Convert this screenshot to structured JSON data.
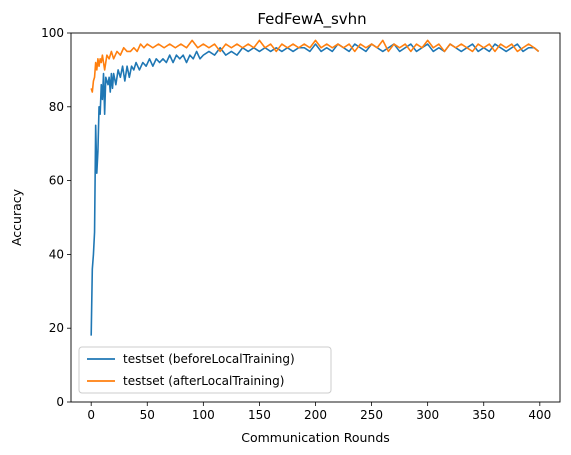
{
  "chart_data": {
    "type": "line",
    "title": "FedFewA_svhn",
    "xlabel": "Communication Rounds",
    "ylabel": "Accuracy",
    "xlim": [
      -18,
      418
    ],
    "ylim": [
      0,
      100
    ],
    "xticks": [
      0,
      50,
      100,
      150,
      200,
      250,
      300,
      350,
      400
    ],
    "yticks": [
      0,
      20,
      40,
      60,
      80,
      100
    ],
    "grid": false,
    "legend_position": "lower-left",
    "series": [
      {
        "name": "testset (beforeLocalTraining)",
        "color": "#1f77b4",
        "x": [
          0,
          1,
          2,
          3,
          4,
          5,
          6,
          7,
          8,
          9,
          10,
          11,
          12,
          13,
          14,
          15,
          16,
          17,
          18,
          19,
          20,
          22,
          24,
          26,
          28,
          30,
          32,
          34,
          36,
          38,
          40,
          43,
          46,
          49,
          52,
          55,
          58,
          61,
          64,
          67,
          70,
          73,
          76,
          79,
          82,
          85,
          88,
          91,
          94,
          97,
          100,
          105,
          110,
          115,
          120,
          125,
          130,
          135,
          140,
          145,
          150,
          155,
          160,
          165,
          170,
          175,
          180,
          185,
          190,
          195,
          200,
          205,
          210,
          215,
          220,
          225,
          230,
          235,
          240,
          245,
          250,
          255,
          260,
          265,
          270,
          275,
          280,
          285,
          290,
          295,
          300,
          305,
          310,
          315,
          320,
          325,
          330,
          335,
          340,
          345,
          350,
          355,
          360,
          365,
          370,
          375,
          380,
          385,
          390,
          395,
          399
        ],
        "y": [
          18,
          36,
          40,
          46,
          75,
          62,
          68,
          80,
          78,
          86,
          82,
          89,
          78,
          88,
          87,
          86,
          88,
          84,
          89,
          85,
          89,
          86,
          90,
          88,
          91,
          87,
          91,
          88,
          91,
          90,
          92,
          90,
          92,
          91,
          93,
          91,
          93,
          92,
          93,
          92,
          94,
          92,
          94,
          93,
          94,
          92,
          94,
          93,
          95,
          93,
          94,
          95,
          94,
          96,
          94,
          95,
          94,
          96,
          95,
          96,
          95,
          96,
          95,
          96,
          95,
          96,
          95,
          96,
          96,
          95,
          97,
          95,
          96,
          95,
          97,
          96,
          95,
          97,
          96,
          95,
          97,
          96,
          95,
          96,
          97,
          95,
          96,
          97,
          95,
          96,
          97,
          95,
          96,
          95,
          97,
          96,
          95,
          96,
          97,
          95,
          96,
          95,
          97,
          96,
          95,
          96,
          97,
          95,
          96,
          96,
          95
        ]
      },
      {
        "name": "testset (afterLocalTraining)",
        "color": "#ff7f0e",
        "x": [
          0,
          1,
          2,
          3,
          4,
          5,
          6,
          7,
          8,
          9,
          10,
          12,
          14,
          16,
          18,
          20,
          23,
          26,
          29,
          32,
          35,
          38,
          41,
          44,
          47,
          50,
          55,
          60,
          65,
          70,
          75,
          80,
          85,
          90,
          95,
          100,
          105,
          110,
          115,
          120,
          125,
          130,
          135,
          140,
          145,
          150,
          155,
          160,
          165,
          170,
          175,
          180,
          185,
          190,
          195,
          200,
          205,
          210,
          215,
          220,
          225,
          230,
          235,
          240,
          245,
          250,
          255,
          260,
          265,
          270,
          275,
          280,
          285,
          290,
          295,
          300,
          305,
          310,
          315,
          320,
          325,
          330,
          335,
          340,
          345,
          350,
          355,
          360,
          365,
          370,
          375,
          380,
          385,
          390,
          395,
          399
        ],
        "y": [
          85,
          84,
          87,
          88,
          92,
          90,
          93,
          91,
          93,
          92,
          94,
          90,
          94,
          93,
          95,
          93,
          95,
          94,
          96,
          95,
          95,
          96,
          95,
          97,
          96,
          97,
          96,
          97,
          96,
          97,
          96,
          97,
          96,
          98,
          96,
          97,
          96,
          97,
          95,
          97,
          96,
          97,
          96,
          97,
          96,
          98,
          96,
          97,
          95,
          97,
          96,
          97,
          96,
          97,
          96,
          98,
          96,
          97,
          96,
          97,
          96,
          97,
          95,
          97,
          96,
          97,
          96,
          98,
          95,
          97,
          96,
          97,
          95,
          97,
          96,
          98,
          96,
          97,
          95,
          97,
          96,
          97,
          96,
          95,
          97,
          96,
          97,
          95,
          97,
          96,
          97,
          95,
          96,
          97,
          96,
          95
        ]
      }
    ]
  }
}
